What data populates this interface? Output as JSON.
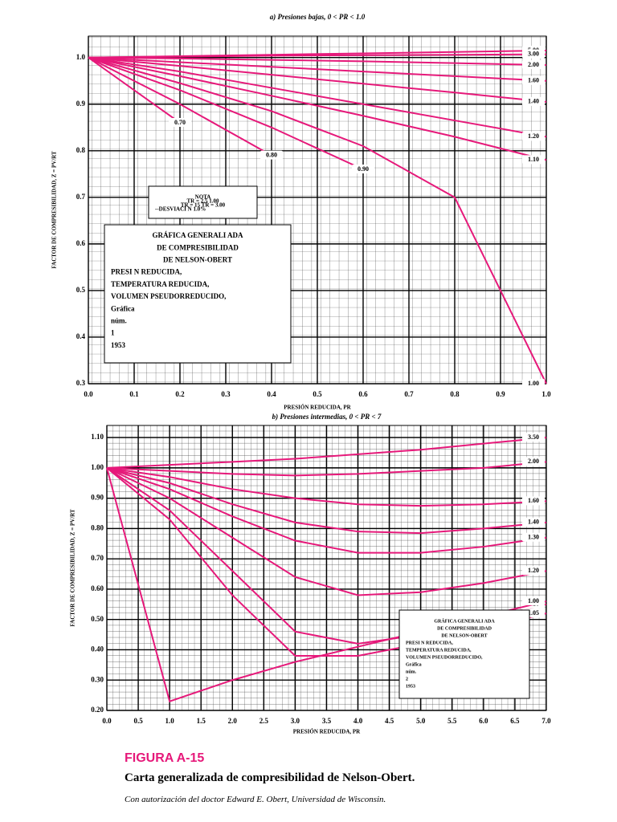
{
  "chart_data": [
    {
      "type": "line",
      "title": "a) Presiones bajas, 0 < PR < 1.0",
      "xlabel": "PRESIÓN REDUCIDA, PR",
      "ylabel": "FACTOR DE COMPRESIBILIDAD, Z = PV/RT",
      "grid": true,
      "color": "#e6197a",
      "x": [
        0,
        0.2,
        0.4,
        0.6,
        0.8,
        1.0
      ],
      "xlim": [
        0,
        1.0
      ],
      "ylim": [
        0.3,
        1.046
      ],
      "xticks": [
        {
          "value": 0,
          "label": "0.0"
        },
        0.1,
        0.2,
        0.3,
        0.4,
        0.5,
        0.6,
        0.7,
        0.8,
        0.9,
        {
          "value": 1,
          "label": "1.0"
        }
      ],
      "yticks": [
        0.3,
        0.4,
        0.5,
        0.6,
        0.7,
        0.8,
        0.9,
        {
          "value": 1,
          "label": "1.0"
        }
      ],
      "series": [
        {
          "name": "5.00",
          "values": [
            1,
            1.003,
            1.006,
            1.009,
            1.012,
            1.015
          ]
        },
        {
          "name": "3.00",
          "values": [
            1,
            1.002,
            1.004,
            1.005,
            1.006,
            1.007
          ]
        },
        {
          "name": "2.00",
          "values": [
            1,
            0.998,
            0.995,
            0.992,
            0.988,
            0.984
          ]
        },
        {
          "name": "1.60",
          "values": [
            1,
            0.99,
            0.98,
            0.97,
            0.96,
            0.95
          ]
        },
        {
          "name": "1.40",
          "values": [
            1,
            0.982,
            0.963,
            0.944,
            0.925,
            0.905
          ]
        },
        {
          "name": "1.20",
          "values": [
            1,
            0.97,
            0.935,
            0.9,
            0.865,
            0.83
          ]
        },
        {
          "name": "1.10",
          "values": [
            1,
            0.96,
            0.918,
            0.875,
            0.83,
            0.78
          ]
        },
        {
          "name": "1.00",
          "values": [
            1,
            0.945,
            0.885,
            0.81,
            0.7,
            0.3
          ]
        },
        {
          "name": "0.90",
          "values": [
            1,
            0.93,
            0.85,
            0.76,
            null,
            null
          ]
        },
        {
          "name": "0.80",
          "values": [
            1,
            0.9,
            0.79,
            null,
            null,
            null
          ]
        },
        {
          "name": "0.70",
          "values": [
            1,
            0.86,
            null,
            null,
            null,
            null
          ]
        }
      ]
    },
    {
      "type": "line",
      "title": "b) Presiones intermedias, 0 < PR < 7",
      "xlabel": "PRESIÓN REDUCIDA, PR",
      "ylabel": "FACTOR DE COMPRESIBILIDAD, Z = PV/RT",
      "grid": true,
      "color": "#e6197a",
      "x": [
        0,
        1,
        2,
        3,
        4,
        5,
        6,
        7
      ],
      "xlim": [
        0,
        7.0
      ],
      "ylim": [
        0.2,
        1.14
      ],
      "xticks": [
        {
          "value": 0,
          "label": "0.0"
        },
        0.5,
        {
          "value": 1,
          "label": "1.0"
        },
        1.5,
        {
          "value": 2,
          "label": "2.0"
        },
        2.5,
        {
          "value": 3,
          "label": "3.0"
        },
        3.5,
        {
          "value": 4,
          "label": "4.0"
        },
        4.5,
        {
          "value": 5,
          "label": "5.0"
        },
        5.5,
        {
          "value": 6,
          "label": "6.0"
        },
        6.5,
        {
          "value": 7,
          "label": "7.0"
        }
      ],
      "yticks": [
        {
          "value": 0.2,
          "label": "0.20"
        },
        {
          "value": 0.3,
          "label": "0.30"
        },
        {
          "value": 0.4,
          "label": "0.40"
        },
        {
          "value": 0.5,
          "label": "0.50"
        },
        {
          "value": 0.6,
          "label": "0.60"
        },
        {
          "value": 0.7,
          "label": "0.70"
        },
        {
          "value": 0.8,
          "label": "0.80"
        },
        {
          "value": 0.9,
          "label": "0.90"
        },
        {
          "value": 1,
          "label": "1.00"
        },
        {
          "value": 1.1,
          "label": "1.10"
        }
      ],
      "series": [
        {
          "name": "3.50",
          "values": [
            1,
            1.01,
            1.02,
            1.03,
            1.045,
            1.06,
            1.08,
            1.1
          ]
        },
        {
          "name": "2.00",
          "values": [
            1,
            0.99,
            0.98,
            0.975,
            0.98,
            0.99,
            1.0,
            1.02
          ]
        },
        {
          "name": "1.60",
          "values": [
            1,
            0.97,
            0.93,
            0.9,
            0.88,
            0.875,
            0.88,
            0.89
          ]
        },
        {
          "name": "1.40",
          "values": [
            1,
            0.95,
            0.88,
            0.82,
            0.79,
            0.785,
            0.8,
            0.82
          ]
        },
        {
          "name": "1.30",
          "values": [
            1,
            0.93,
            0.84,
            0.76,
            0.72,
            0.72,
            0.74,
            0.77
          ]
        },
        {
          "name": "1.20",
          "values": [
            1,
            0.9,
            0.77,
            0.64,
            0.58,
            0.59,
            0.62,
            0.66
          ]
        },
        {
          "name": "1.10",
          "values": [
            1,
            0.86,
            0.66,
            0.46,
            0.42,
            0.45,
            0.5,
            0.55
          ]
        },
        {
          "name": "1.05",
          "values": [
            1,
            0.83,
            0.58,
            0.38,
            0.38,
            0.42,
            0.47,
            0.52
          ]
        },
        {
          "name": "1.00",
          "values": [
            1,
            0.23,
            0.3,
            0.36,
            0.41,
            0.46,
            0.51,
            0.56
          ]
        }
      ]
    }
  ],
  "notes": {
    "box_a": [
      "GRÁFICA GENERALI ADA",
      "DE COMPRESIBILIDAD",
      "DE NELSON-OBERT",
      "PRESI N REDUCIDA,",
      "TEMPERATURA REDUCIDA,",
      "VOLUMEN PSEUDORREDUCIDO,",
      "Gráfica",
      "núm.",
      "1",
      "1953"
    ],
    "note_a": [
      "NOTA",
      "TR = 2.5    1.00",
      "TR = 15   TR = 3.00",
      "--DESVIACI N  1.0%"
    ],
    "box_b": [
      "GRÁFICA GENERALI ADA",
      "DE COMPRESIBILIDAD",
      "DE NELSON-OBERT",
      "PRESI N REDUCIDA,",
      "TEMPERATURA REDUCIDA,",
      "VOLUMEN PSEUDORREDUCIDO,",
      "Gráfica",
      "núm.",
      "2",
      "1953"
    ]
  },
  "caption": {
    "label": "FIGURA A-15",
    "title": "Carta generalizada de compresibilidad de Nelson-Obert.",
    "credit": "Con autorización del doctor Edward E. Obert, Universidad de Wisconsin."
  }
}
